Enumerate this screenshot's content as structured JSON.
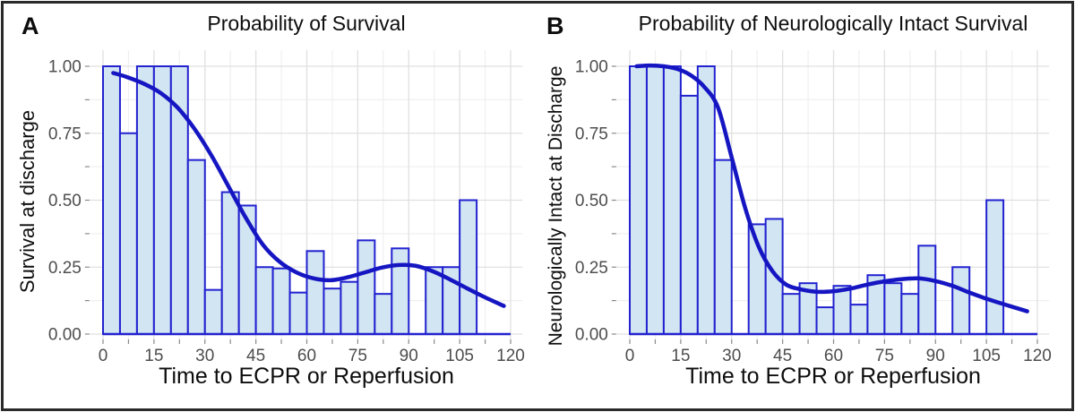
{
  "figure": {
    "background": "#ffffff",
    "frame_color": "#2a2a2a"
  },
  "colors": {
    "bar_fill": "#d2e5f2",
    "bar_stroke": "#2222d0",
    "curve": "#1515c2",
    "baseline": "#2222d0",
    "grid_major": "#e0e0e0",
    "grid_minor": "#f0f0f0",
    "tick_mark": "#8a8a8a",
    "tick_text": "#4d4d4d",
    "text": "#0d0d0d"
  },
  "chart_data": [
    {
      "type": "bar",
      "panel_label": "A",
      "title": "Probability of Survival",
      "xlabel": "Time to ECPR or Reperfusion",
      "ylabel": "Survival at discharge",
      "xlim": [
        0,
        120
      ],
      "ylim": [
        0,
        1
      ],
      "xticks": [
        0,
        15,
        30,
        45,
        60,
        75,
        90,
        105,
        120
      ],
      "ytick_labels": [
        "0.00",
        "0.25",
        "0.50",
        "0.75",
        "1.00"
      ],
      "ytick_values": [
        0,
        0.25,
        0.5,
        0.75,
        1.0
      ],
      "grid": "major+minor",
      "legend": "none",
      "bin_width": 5,
      "bars": [
        [
          0,
          1.0
        ],
        [
          5,
          0.75
        ],
        [
          10,
          1.0
        ],
        [
          15,
          1.0
        ],
        [
          20,
          1.0
        ],
        [
          25,
          0.65
        ],
        [
          30,
          0.165
        ],
        [
          35,
          0.53
        ],
        [
          40,
          0.48
        ],
        [
          45,
          0.25
        ],
        [
          50,
          0.245
        ],
        [
          55,
          0.155
        ],
        [
          60,
          0.31
        ],
        [
          65,
          0.17
        ],
        [
          70,
          0.195
        ],
        [
          75,
          0.35
        ],
        [
          80,
          0.15
        ],
        [
          85,
          0.32
        ],
        [
          95,
          0.25
        ],
        [
          100,
          0.25
        ],
        [
          105,
          0.5
        ]
      ],
      "smooth_curve": [
        [
          3,
          0.975
        ],
        [
          7,
          0.96
        ],
        [
          12,
          0.935
        ],
        [
          17,
          0.9
        ],
        [
          22,
          0.845
        ],
        [
          27,
          0.765
        ],
        [
          32,
          0.665
        ],
        [
          37,
          0.55
        ],
        [
          42,
          0.435
        ],
        [
          47,
          0.335
        ],
        [
          52,
          0.27
        ],
        [
          57,
          0.23
        ],
        [
          62,
          0.208
        ],
        [
          67,
          0.201
        ],
        [
          72,
          0.212
        ],
        [
          77,
          0.23
        ],
        [
          82,
          0.248
        ],
        [
          87,
          0.258
        ],
        [
          92,
          0.255
        ],
        [
          97,
          0.235
        ],
        [
          102,
          0.205
        ],
        [
          107,
          0.172
        ],
        [
          112,
          0.14
        ],
        [
          118,
          0.105
        ]
      ]
    },
    {
      "type": "bar",
      "panel_label": "B",
      "title": "Probability of Neurologically Intact Survival",
      "xlabel": "Time to ECPR or Reperfusion",
      "ylabel": "Neurologically Intact at Discharge",
      "xlim": [
        0,
        120
      ],
      "ylim": [
        0,
        1
      ],
      "xticks": [
        0,
        15,
        30,
        45,
        60,
        75,
        90,
        105,
        120
      ],
      "ytick_labels": [
        "0.00",
        "0.25",
        "0.50",
        "0.75",
        "1.00"
      ],
      "ytick_values": [
        0,
        0.25,
        0.5,
        0.75,
        1.0
      ],
      "grid": "major+minor",
      "legend": "none",
      "bin_width": 5,
      "bars": [
        [
          0,
          1.0
        ],
        [
          5,
          1.0
        ],
        [
          10,
          1.0
        ],
        [
          15,
          0.89
        ],
        [
          20,
          1.0
        ],
        [
          25,
          0.65
        ],
        [
          35,
          0.41
        ],
        [
          40,
          0.43
        ],
        [
          45,
          0.15
        ],
        [
          50,
          0.19
        ],
        [
          55,
          0.1
        ],
        [
          60,
          0.18
        ],
        [
          65,
          0.11
        ],
        [
          70,
          0.22
        ],
        [
          75,
          0.19
        ],
        [
          80,
          0.15
        ],
        [
          85,
          0.33
        ],
        [
          95,
          0.25
        ],
        [
          105,
          0.5
        ]
      ],
      "smooth_curve": [
        [
          2,
          1.0
        ],
        [
          6,
          1.003
        ],
        [
          10,
          1.0
        ],
        [
          14,
          0.99
        ],
        [
          18,
          0.966
        ],
        [
          22,
          0.922
        ],
        [
          26,
          0.845
        ],
        [
          30,
          0.66
        ],
        [
          34,
          0.47
        ],
        [
          38,
          0.325
        ],
        [
          42,
          0.235
        ],
        [
          46,
          0.185
        ],
        [
          50,
          0.168
        ],
        [
          55,
          0.158
        ],
        [
          60,
          0.16
        ],
        [
          65,
          0.17
        ],
        [
          70,
          0.185
        ],
        [
          75,
          0.197
        ],
        [
          80,
          0.205
        ],
        [
          85,
          0.208
        ],
        [
          90,
          0.198
        ],
        [
          95,
          0.18
        ],
        [
          100,
          0.155
        ],
        [
          105,
          0.132
        ],
        [
          110,
          0.112
        ],
        [
          117,
          0.085
        ]
      ]
    }
  ]
}
